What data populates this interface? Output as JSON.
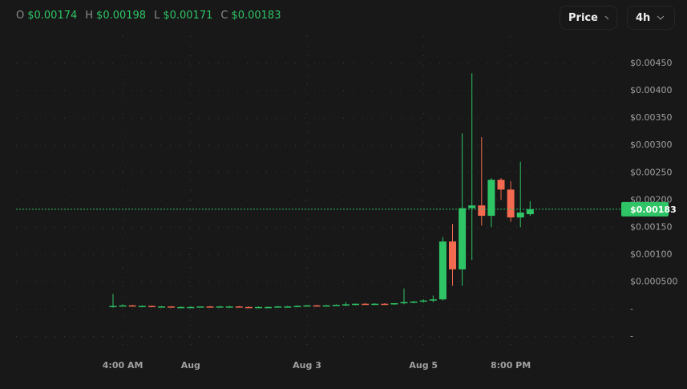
{
  "header": {
    "ohlc": [
      {
        "label": "O",
        "value": "$0.00174"
      },
      {
        "label": "H",
        "value": "$0.00198"
      },
      {
        "label": "L",
        "value": "$0.00171"
      },
      {
        "label": "C",
        "value": "$0.00183"
      }
    ],
    "price_button": "Price",
    "interval_button": "4h"
  },
  "chart_data": {
    "type": "candlestick",
    "categories": [
      null,
      "4:00 AM",
      null,
      null,
      null,
      null,
      null,
      null,
      "Aug",
      null,
      null,
      null,
      null,
      null,
      null,
      null,
      null,
      null,
      null,
      null,
      "Aug 3",
      null,
      null,
      null,
      null,
      null,
      null,
      null,
      null,
      null,
      null,
      null,
      "Aug 5",
      null,
      null,
      null,
      null,
      null,
      null,
      null,
      null,
      "8:00 PM",
      null,
      null
    ],
    "open": [
      4e-05,
      6e-05,
      7e-05,
      6e-05,
      6e-05,
      4e-05,
      5e-05,
      3e-05,
      4e-05,
      4e-05,
      5e-05,
      4e-05,
      5e-05,
      5e-05,
      4e-05,
      3e-05,
      4e-05,
      4e-05,
      5e-05,
      5e-05,
      6e-05,
      7e-05,
      6e-05,
      7e-05,
      8e-05,
      9e-05,
      0.0001,
      9e-05,
      0.0001,
      9e-05,
      0.00011,
      0.00013,
      0.00014,
      0.00016,
      0.00018,
      0.00124,
      0.00073,
      0.00185,
      0.0019,
      0.00171,
      0.00237,
      0.00219,
      0.00168,
      0.00174
    ],
    "high": [
      0.00028,
      9e-05,
      8e-05,
      7e-05,
      7e-05,
      6e-05,
      6e-05,
      5e-05,
      5e-05,
      5e-05,
      6e-05,
      6e-05,
      6e-05,
      6e-05,
      5e-05,
      5e-05,
      5e-05,
      6e-05,
      6e-05,
      7e-05,
      8e-05,
      8e-05,
      8e-05,
      9e-05,
      0.00013,
      0.0001,
      0.00011,
      0.00011,
      0.00011,
      0.00011,
      0.00038,
      0.00015,
      0.00018,
      0.00025,
      0.00132,
      0.00156,
      0.00322,
      0.00432,
      0.00315,
      0.0024,
      0.0024,
      0.00234,
      0.0027,
      0.00198
    ],
    "low": [
      3e-05,
      5e-05,
      5e-05,
      5e-05,
      4e-05,
      4e-05,
      3e-05,
      3e-05,
      3e-05,
      3e-05,
      4e-05,
      4e-05,
      4e-05,
      3e-05,
      3e-05,
      3e-05,
      3e-05,
      4e-05,
      4e-05,
      4e-05,
      5e-05,
      5e-05,
      5e-05,
      6e-05,
      6e-05,
      7e-05,
      8e-05,
      8e-05,
      8e-05,
      8e-05,
      9e-05,
      0.00011,
      0.00012,
      0.00013,
      0.00016,
      0.00043,
      0.00043,
      0.0009,
      0.00153,
      0.0015,
      0.002,
      0.0016,
      0.0015,
      0.00171
    ],
    "close": [
      6e-05,
      7e-05,
      6e-05,
      6e-05,
      4e-05,
      5e-05,
      3e-05,
      4e-05,
      4e-05,
      5e-05,
      4e-05,
      5e-05,
      5e-05,
      4e-05,
      3e-05,
      4e-05,
      4e-05,
      5e-05,
      5e-05,
      6e-05,
      7e-05,
      6e-05,
      7e-05,
      8e-05,
      9e-05,
      0.0001,
      9e-05,
      0.0001,
      9e-05,
      0.00011,
      0.00013,
      0.00014,
      0.00016,
      0.00018,
      0.00124,
      0.00073,
      0.00185,
      0.0019,
      0.00171,
      0.00237,
      0.00219,
      0.00168,
      0.00177,
      0.00183
    ],
    "up_color": "#2fc466",
    "down_color": "#f26a50",
    "ylim": [
      -0.0008,
      0.005
    ],
    "yticks": [
      {
        "value": 0.0045,
        "label": "$0.00450"
      },
      {
        "value": 0.004,
        "label": "$0.00400"
      },
      {
        "value": 0.0035,
        "label": "$0.00350"
      },
      {
        "value": 0.003,
        "label": "$0.00300"
      },
      {
        "value": 0.0025,
        "label": "$0.00250"
      },
      {
        "value": 0.002,
        "label": "$0.00200"
      },
      {
        "value": 0.0015,
        "label": "$0.00150"
      },
      {
        "value": 0.001,
        "label": "$0.00100"
      },
      {
        "value": 0.0005,
        "label": "$0.000500"
      },
      {
        "value": 0,
        "label": "-"
      },
      {
        "value": -0.0005,
        "label": "-"
      }
    ],
    "last_price": 0.00183,
    "last_price_label": "$0.00183",
    "grid": true
  }
}
